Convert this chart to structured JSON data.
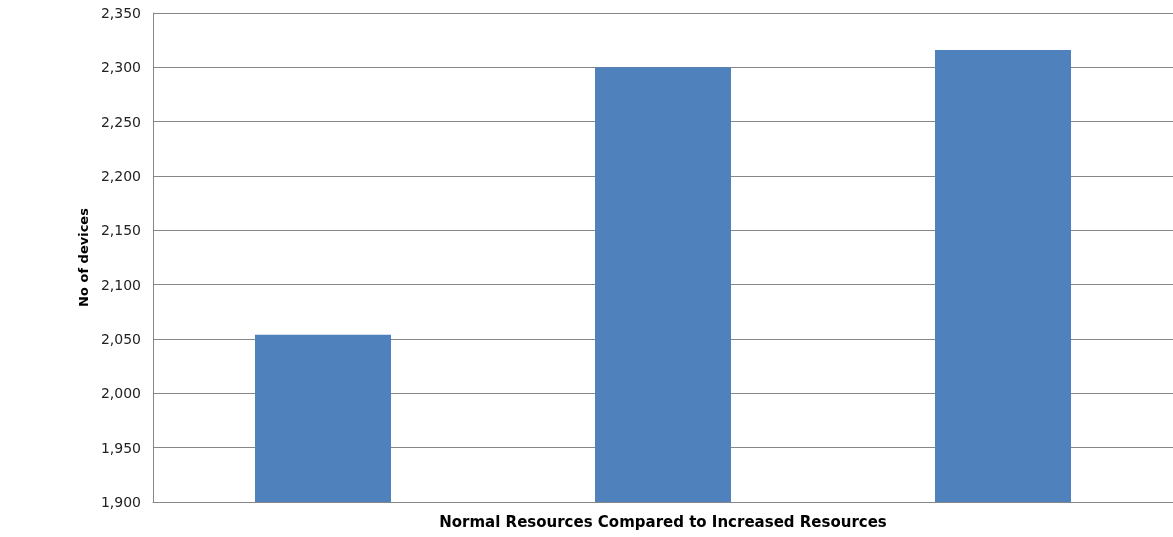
{
  "chart_data": {
    "type": "bar",
    "xlabel": "Normal Resources Compared to Increased Resources",
    "ylabel": "No of devices",
    "categories": [
      null,
      null,
      null
    ],
    "values": [
      2054,
      2300,
      2316
    ],
    "color": "#4f81bd",
    "ylim": [
      1900,
      2350
    ],
    "yticks": [
      {
        "value": 1900,
        "label": "1,900"
      },
      {
        "value": 1950,
        "label": "1,950"
      },
      {
        "value": 2000,
        "label": "2,000"
      },
      {
        "value": 2050,
        "label": "2,050"
      },
      {
        "value": 2100,
        "label": "2,100"
      },
      {
        "value": 2150,
        "label": "2,150"
      },
      {
        "value": 2200,
        "label": "2,200"
      },
      {
        "value": 2250,
        "label": "2,250"
      },
      {
        "value": 2300,
        "label": "2,300"
      },
      {
        "value": 2350,
        "label": "2,350"
      }
    ],
    "grid": "y"
  }
}
